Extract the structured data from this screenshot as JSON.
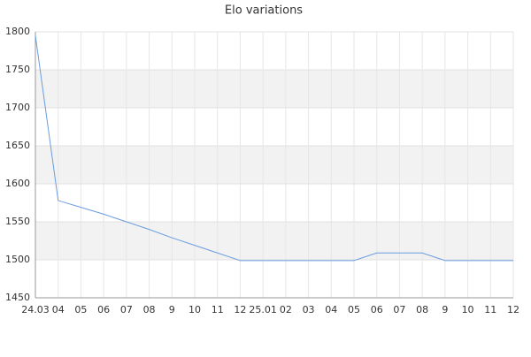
{
  "chart_data": {
    "type": "line",
    "title": "Elo variations",
    "categories": [
      "24.03",
      "04",
      "05",
      "06",
      "07",
      "08",
      "9",
      "10",
      "11",
      "12",
      "25.01",
      "02",
      "03",
      "04",
      "05",
      "06",
      "07",
      "08",
      "9",
      "10",
      "11",
      "12"
    ],
    "series": [
      {
        "color": "#6a9be0",
        "values": [
          1795,
          1578,
          1569,
          1560,
          1550,
          1540,
          1529,
          1519,
          1509,
          1499,
          1499,
          1499,
          1499,
          1499,
          1499,
          1509,
          1509,
          1509,
          1499,
          1499,
          1499,
          1499
        ]
      }
    ],
    "ylim": [
      1450,
      1800
    ],
    "yticks": [
      1450,
      1500,
      1550,
      1600,
      1650,
      1700,
      1750,
      1800
    ],
    "grid": true
  }
}
